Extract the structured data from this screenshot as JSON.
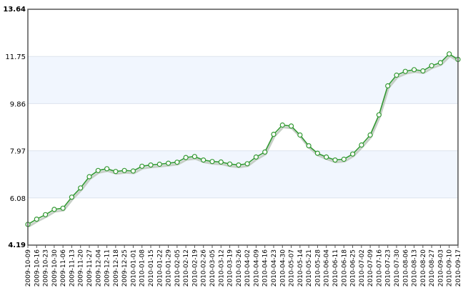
{
  "chart_data": {
    "type": "line",
    "title": "",
    "xlabel": "",
    "ylabel": "",
    "ylim": [
      4.19,
      13.64
    ],
    "y_ticks": [
      "4.19",
      "6.08",
      "7.97",
      "9.86",
      "11.75",
      "13.64"
    ],
    "grid": true,
    "legend": "none",
    "colors": {
      "line": "#339933",
      "marker_stroke": "#339933",
      "marker_fill": "#ffffff",
      "shadow": "#c6cfc6",
      "band": "#f1f6fe",
      "frame": "#555555",
      "gridline": "#dde3ee"
    },
    "categories": [
      "2009-10-09",
      "2009-10-16",
      "2009-10-23",
      "2009-10-30",
      "2009-11-06",
      "2009-11-13",
      "2009-11-20",
      "2009-11-27",
      "2009-12-04",
      "2009-12-11",
      "2009-12-18",
      "2009-12-25",
      "2010-01-01",
      "2010-01-08",
      "2010-01-15",
      "2010-01-22",
      "2010-01-29",
      "2010-02-05",
      "2010-02-12",
      "2010-02-19",
      "2010-02-26",
      "2010-03-05",
      "2010-03-12",
      "2010-03-19",
      "2010-03-26",
      "2010-04-02",
      "2010-04-09",
      "2010-04-16",
      "2010-04-23",
      "2010-04-30",
      "2010-05-07",
      "2010-05-14",
      "2010-05-21",
      "2010-05-28",
      "2010-06-04",
      "2010-06-11",
      "2010-06-18",
      "2010-06-25",
      "2010-07-02",
      "2010-07-09",
      "2010-07-16",
      "2010-07-23",
      "2010-07-30",
      "2010-08-06",
      "2010-08-13",
      "2010-08-20",
      "2010-08-27",
      "2010-09-03",
      "2010-09-10",
      "2010-09-17"
    ],
    "values": [
      5.02,
      5.23,
      5.41,
      5.62,
      5.67,
      6.11,
      6.48,
      6.93,
      7.18,
      7.25,
      7.14,
      7.18,
      7.16,
      7.35,
      7.4,
      7.43,
      7.47,
      7.51,
      7.7,
      7.74,
      7.6,
      7.54,
      7.52,
      7.44,
      7.4,
      7.45,
      7.72,
      7.92,
      8.63,
      9.0,
      8.96,
      8.6,
      8.17,
      7.87,
      7.72,
      7.6,
      7.63,
      7.84,
      8.2,
      8.6,
      9.41,
      10.57,
      11.0,
      11.15,
      11.22,
      11.17,
      11.38,
      11.5,
      11.85,
      11.63
    ]
  }
}
